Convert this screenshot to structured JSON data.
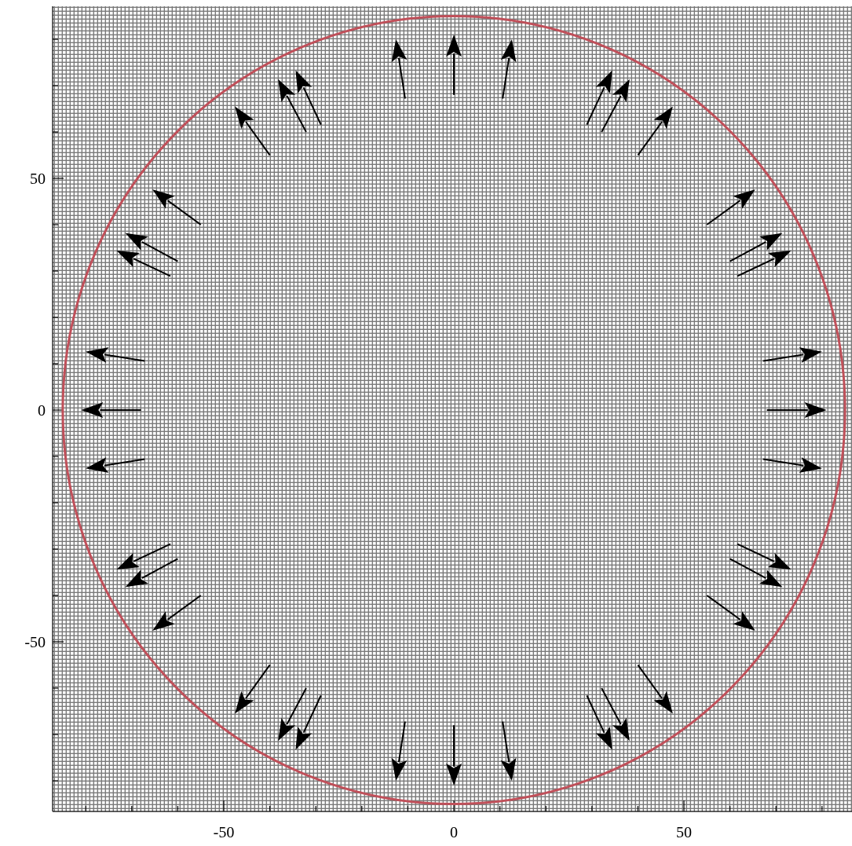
{
  "chart_data": {
    "type": "vector-field",
    "title": "",
    "xlabel": "",
    "ylabel": "",
    "xlim": [
      -87,
      87
    ],
    "ylim": [
      -87,
      87
    ],
    "grid": true,
    "x_ticks": [
      {
        "value": -50,
        "label": "-50"
      },
      {
        "value": 0,
        "label": "0"
      },
      {
        "value": 50,
        "label": "50"
      }
    ],
    "y_ticks": [
      {
        "value": 50,
        "label": "50"
      },
      {
        "value": 0,
        "label": "0"
      },
      {
        "value": -50,
        "label": "-50"
      }
    ],
    "circle": {
      "cx": 0,
      "cy": 0,
      "r": 85,
      "color": "#c0505a"
    },
    "arrows": [
      {
        "x1": 0,
        "y1": 68,
        "x2": 0,
        "y2": 81
      },
      {
        "x1": -10.6,
        "y1": 67.2,
        "x2": -12.6,
        "y2": 80.0
      },
      {
        "x1": 10.6,
        "y1": 67.2,
        "x2": 12.6,
        "y2": 80.0
      },
      {
        "x1": -28.9,
        "y1": 61.6,
        "x2": -34.4,
        "y2": 73.3
      },
      {
        "x1": -32.1,
        "y1": 60.0,
        "x2": -38.2,
        "y2": 71.4
      },
      {
        "x1": 28.9,
        "y1": 61.6,
        "x2": 34.4,
        "y2": 73.3
      },
      {
        "x1": 32.1,
        "y1": 60.0,
        "x2": 38.2,
        "y2": 71.4
      },
      {
        "x1": -40.0,
        "y1": 55.0,
        "x2": -47.6,
        "y2": 65.5
      },
      {
        "x1": 40.0,
        "y1": 55.0,
        "x2": 47.6,
        "y2": 65.5
      },
      {
        "x1": -55.0,
        "y1": 40.0,
        "x2": -65.5,
        "y2": 47.6
      },
      {
        "x1": 55.0,
        "y1": 40.0,
        "x2": 65.5,
        "y2": 47.6
      },
      {
        "x1": -60.0,
        "y1": 32.1,
        "x2": -71.4,
        "y2": 38.2
      },
      {
        "x1": -61.6,
        "y1": 28.9,
        "x2": -73.3,
        "y2": 34.4
      },
      {
        "x1": 60.0,
        "y1": 32.1,
        "x2": 71.4,
        "y2": 38.2
      },
      {
        "x1": 61.6,
        "y1": 28.9,
        "x2": 73.3,
        "y2": 34.4
      },
      {
        "x1": -67.2,
        "y1": 10.6,
        "x2": -80.0,
        "y2": 12.6
      },
      {
        "x1": -68.0,
        "y1": 0,
        "x2": -81.0,
        "y2": 0
      },
      {
        "x1": -67.2,
        "y1": -10.6,
        "x2": -80.0,
        "y2": -12.6
      },
      {
        "x1": 67.2,
        "y1": 10.6,
        "x2": 80.0,
        "y2": 12.6
      },
      {
        "x1": 68.0,
        "y1": 0,
        "x2": 81.0,
        "y2": 0
      },
      {
        "x1": 67.2,
        "y1": -10.6,
        "x2": 80.0,
        "y2": -12.6
      },
      {
        "x1": -61.6,
        "y1": -28.9,
        "x2": -73.3,
        "y2": -34.4
      },
      {
        "x1": -60.0,
        "y1": -32.1,
        "x2": -71.4,
        "y2": -38.2
      },
      {
        "x1": 61.6,
        "y1": -28.9,
        "x2": 73.3,
        "y2": -34.4
      },
      {
        "x1": 60.0,
        "y1": -32.1,
        "x2": 71.4,
        "y2": -38.2
      },
      {
        "x1": -55.0,
        "y1": -40.0,
        "x2": -65.5,
        "y2": -47.6
      },
      {
        "x1": 55.0,
        "y1": -40.0,
        "x2": 65.5,
        "y2": -47.6
      },
      {
        "x1": -40.0,
        "y1": -55.0,
        "x2": -47.6,
        "y2": -65.5
      },
      {
        "x1": 40.0,
        "y1": -55.0,
        "x2": 47.6,
        "y2": -65.5
      },
      {
        "x1": -32.1,
        "y1": -60.0,
        "x2": -38.2,
        "y2": -71.4
      },
      {
        "x1": -28.9,
        "y1": -61.6,
        "x2": -34.4,
        "y2": -73.3
      },
      {
        "x1": 32.1,
        "y1": -60.0,
        "x2": 38.2,
        "y2": -71.4
      },
      {
        "x1": 28.9,
        "y1": -61.6,
        "x2": 34.4,
        "y2": -73.3
      },
      {
        "x1": -10.6,
        "y1": -67.2,
        "x2": -12.6,
        "y2": -80.0
      },
      {
        "x1": 0,
        "y1": -68.0,
        "x2": 0,
        "y2": -81.0
      },
      {
        "x1": 10.6,
        "y1": -67.2,
        "x2": 12.6,
        "y2": -80.0
      }
    ]
  }
}
